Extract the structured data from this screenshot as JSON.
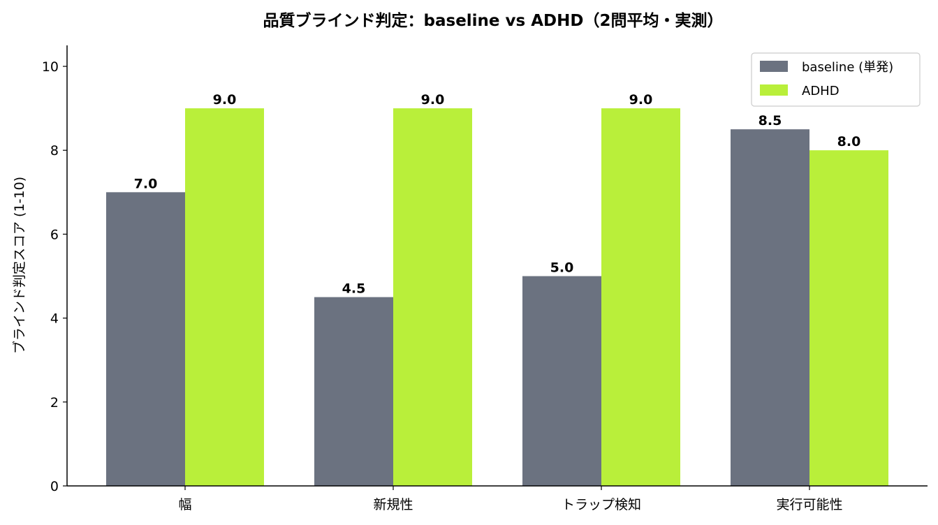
{
  "chart_data": {
    "type": "bar",
    "title": "品質ブラインド判定：baseline vs ADHD（2問平均・実測）",
    "xlabel": "",
    "ylabel": "ブラインド判定スコア (1-10)",
    "ylim": [
      0,
      10.5
    ],
    "yticks": [
      0,
      2,
      4,
      6,
      8,
      10
    ],
    "categories": [
      "幅",
      "新規性",
      "トラップ検知",
      "実行可能性"
    ],
    "series": [
      {
        "name": "baseline (単発)",
        "color": "#6b7280",
        "values": [
          7.0,
          4.5,
          5.0,
          8.5
        ],
        "labels": [
          "7.0",
          "4.5",
          "5.0",
          "8.5"
        ]
      },
      {
        "name": "ADHD",
        "color": "#b9ef3a",
        "values": [
          9.0,
          9.0,
          9.0,
          8.0
        ],
        "labels": [
          "9.0",
          "9.0",
          "9.0",
          "8.0"
        ]
      }
    ],
    "legend_position": "top-right",
    "grid": false
  }
}
